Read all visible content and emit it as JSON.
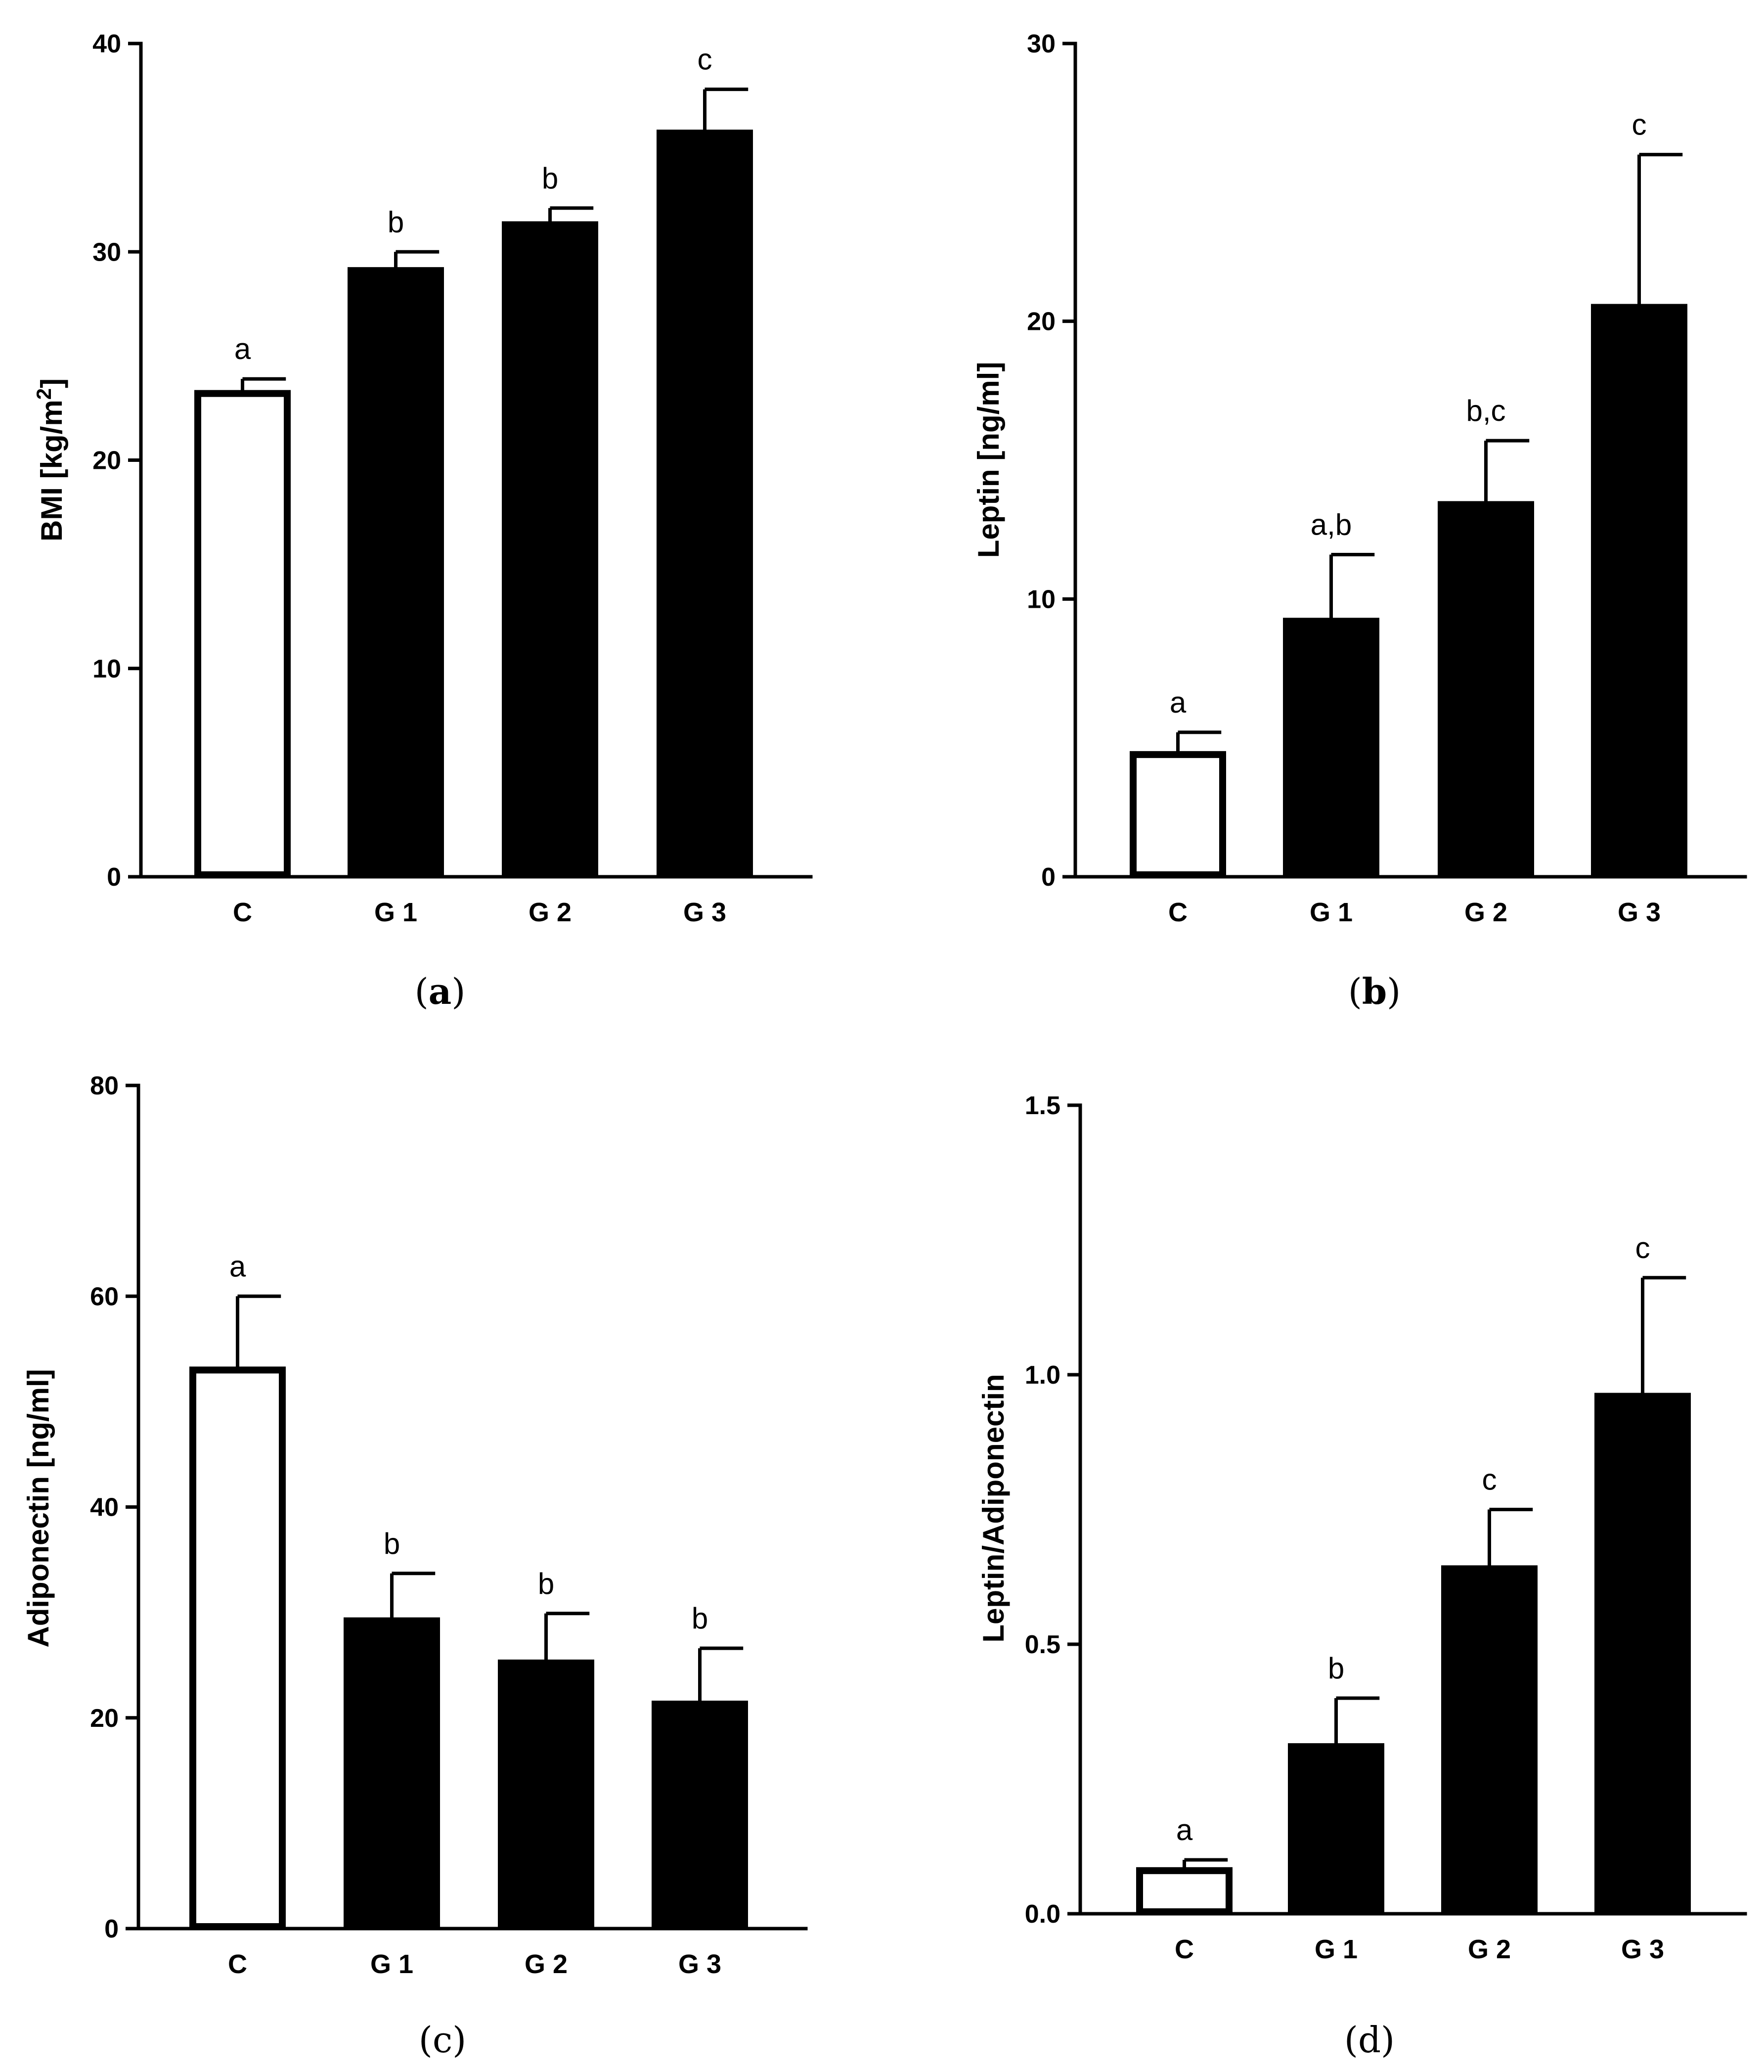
{
  "chart_data": [
    {
      "type": "bar",
      "panel": "a",
      "ylabel": "BMI [kg/m",
      "ylabel_sup": "2",
      "ylabel_end": "]",
      "ylim": [
        0,
        40
      ],
      "yticks": [
        0,
        10,
        20,
        30,
        40
      ],
      "categories": [
        "C",
        "G 1",
        "G 2",
        "G 3"
      ],
      "values": [
        23.2,
        29.1,
        31.3,
        35.7
      ],
      "errors": [
        0.7,
        0.9,
        0.8,
        2.1
      ],
      "annotations": [
        "a",
        "b",
        "b",
        "c"
      ],
      "fills": [
        "#ffffff",
        "#000000",
        "#000000",
        "#000000"
      ]
    },
    {
      "type": "bar",
      "panel": "b",
      "ylabel": "Leptin [ng/ml]",
      "ylim": [
        0,
        30
      ],
      "yticks": [
        0,
        10,
        20,
        30
      ],
      "categories": [
        "C",
        "G 1",
        "G 2",
        "G 3"
      ],
      "values": [
        4.4,
        9.2,
        13.4,
        20.5
      ],
      "errors": [
        0.8,
        2.4,
        2.3,
        5.5
      ],
      "annotations": [
        "a",
        "a,b",
        "b,c",
        "c"
      ],
      "fills": [
        "#ffffff",
        "#000000",
        "#000000",
        "#000000"
      ]
    },
    {
      "type": "bar",
      "panel": "c",
      "ylabel": "Adiponectin [ng/ml]",
      "ylim": [
        0,
        80
      ],
      "yticks": [
        0,
        20,
        40,
        60,
        80
      ],
      "categories": [
        "C",
        "G 1",
        "G 2",
        "G 3"
      ],
      "values": [
        53.0,
        29.2,
        25.2,
        21.3
      ],
      "errors": [
        7.0,
        4.5,
        4.7,
        5.3
      ],
      "annotations": [
        "a",
        "b",
        "b",
        "b"
      ],
      "fills": [
        "#ffffff",
        "#000000",
        "#000000",
        "#000000"
      ]
    },
    {
      "type": "bar",
      "panel": "d",
      "ylabel": "Leptin/Adiponectin",
      "ylim": [
        0,
        1.5
      ],
      "yticks": [
        "0.0",
        "0.5",
        "1.0",
        "1.5"
      ],
      "categories": [
        "C",
        "G 1",
        "G 2",
        "G 3"
      ],
      "values": [
        0.08,
        0.31,
        0.64,
        0.96
      ],
      "errors": [
        0.02,
        0.09,
        0.11,
        0.22
      ],
      "annotations": [
        "a",
        "b",
        "c",
        "c"
      ],
      "fills": [
        "#ffffff",
        "#000000",
        "#000000",
        "#000000"
      ]
    }
  ],
  "panel_labels": [
    "a",
    "b",
    "c",
    "d"
  ],
  "colors": {
    "axis": "#000000",
    "bar_control": "#ffffff",
    "bar_group": "#000000",
    "background": "#ffffff"
  }
}
